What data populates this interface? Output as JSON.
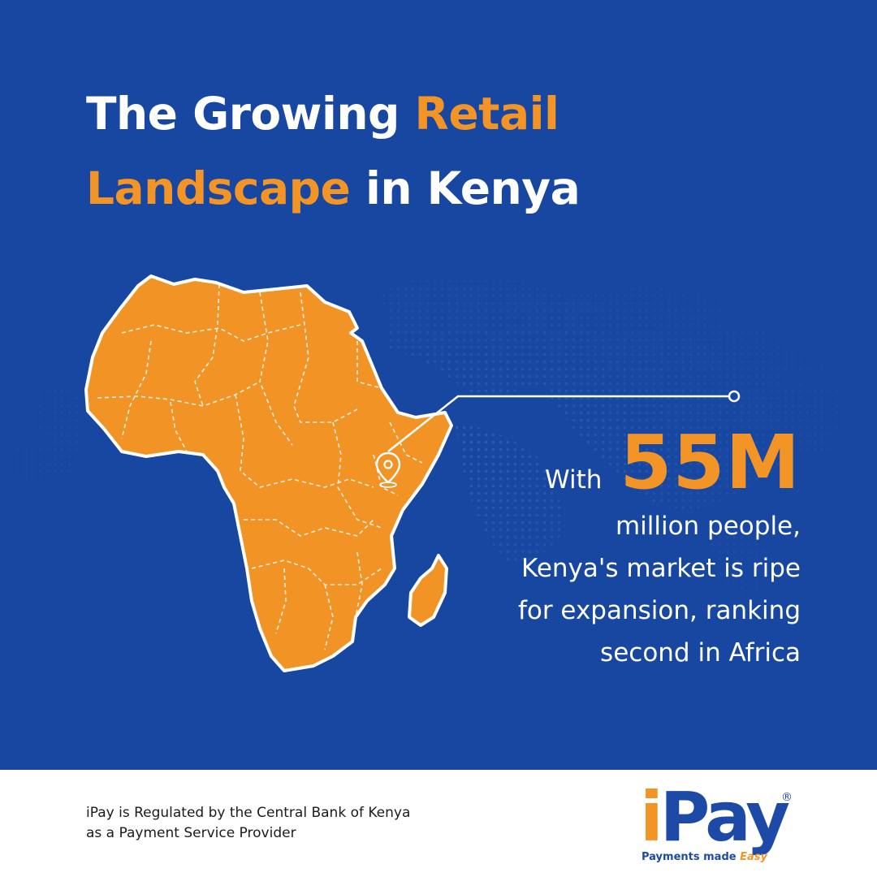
{
  "headline": {
    "line1_white": "The Growing",
    "line1_orange": "Retail",
    "line2_orange": "Landscape",
    "line2_white": "in Kenya"
  },
  "stat": {
    "prefix": "With",
    "value": "55M",
    "desc_line1": "million people,",
    "desc_line2": "Kenya's market is ripe",
    "desc_line3": "for expansion, ranking",
    "desc_line4": "second in Africa"
  },
  "footer": {
    "regulation_line1": "iPay is Regulated by the Central Bank of Kenya",
    "regulation_line2": "as a Payment Service Provider"
  },
  "logo": {
    "letter_i": "i",
    "rest": "Pay",
    "registered": "®",
    "tagline": "Payments made",
    "tagline_accent": "Easy"
  },
  "colors": {
    "background": "#1747a0",
    "accent": "#f39426",
    "text": "#ffffff",
    "brand_blue": "#1d4aa6"
  },
  "icons": {
    "map_pin": "location-pin-icon"
  }
}
